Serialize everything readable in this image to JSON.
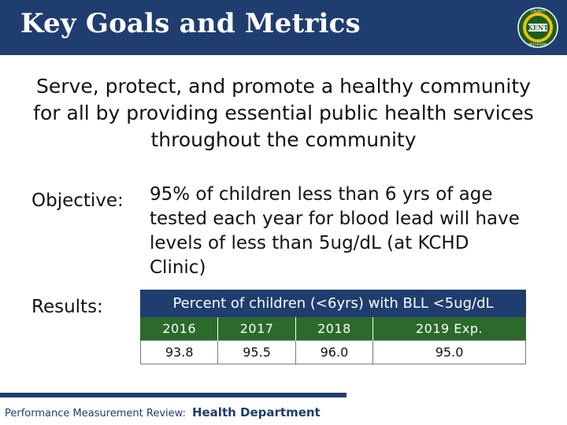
{
  "header": {
    "title": "Key Goals and Metrics",
    "seal": {
      "top_text": "COUNTY",
      "center_text": "KENT",
      "bottom_text": "MICHIGAN",
      "ring_color": "#1b5e20",
      "band_color": "#f2c200"
    }
  },
  "mission": "Serve, protect, and promote a healthy community for all by providing essential public health services throughout the community",
  "objective": {
    "label": "Objective:",
    "text": "95% of children less than 6 yrs of age tested each year for blood lead will have levels of less than 5ug/dL (at KCHD Clinic)"
  },
  "results": {
    "label": "Results:",
    "table": {
      "caption": "Percent of children (<6yrs) with BLL <5ug/dL",
      "years": [
        "2016",
        "2017",
        "2018",
        "2019 Exp."
      ],
      "values": [
        "93.8",
        "95.5",
        "96.0",
        "95.0"
      ]
    }
  },
  "footer": {
    "review_label": "Performance Measurement Review:",
    "department": "Health Department"
  },
  "colors": {
    "title_bar": "#1f3d6e",
    "table_header": "#2b6a2b",
    "caption_bar": "#1f3d6e"
  }
}
